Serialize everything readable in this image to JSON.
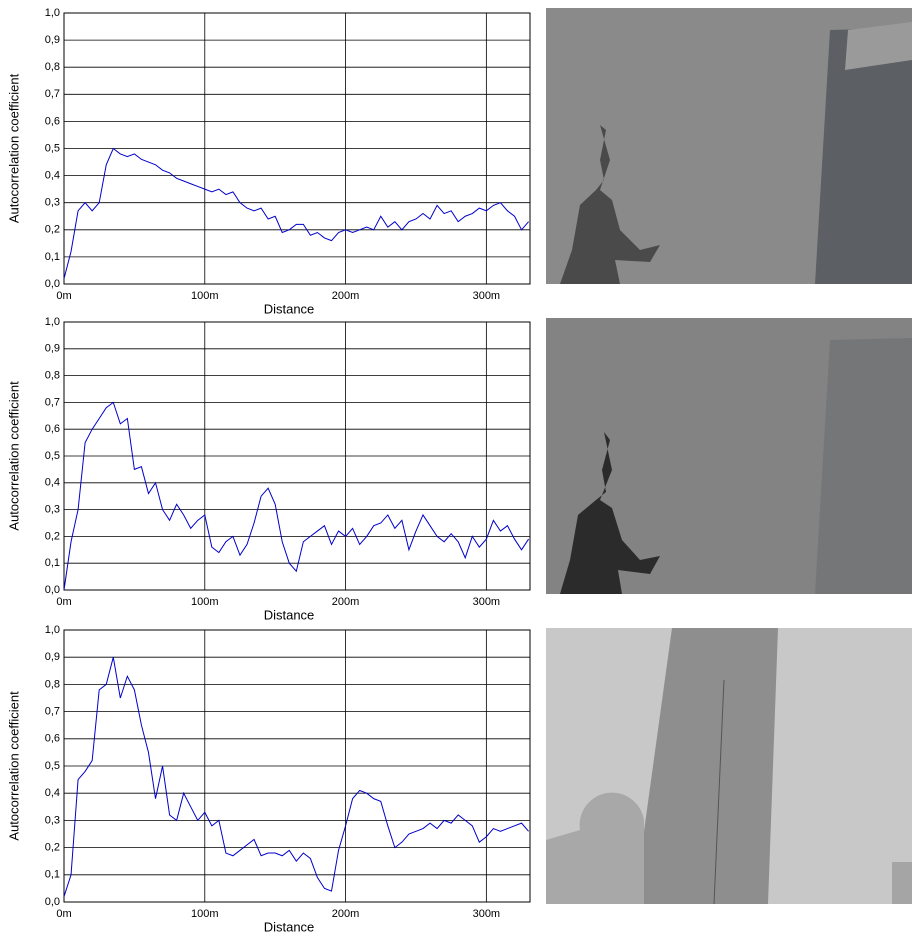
{
  "chart_data": [
    {
      "type": "line",
      "x_label": "Distance",
      "y_label": "Autocorrelation coefficient",
      "color": "#0000cc",
      "grid": true,
      "xlim": [
        0,
        331
      ],
      "ylim": [
        0,
        1
      ],
      "xticks": [
        {
          "value": 0,
          "label": "0m"
        },
        {
          "value": 100,
          "label": "100m"
        },
        {
          "value": 200,
          "label": "200m"
        },
        {
          "value": 300,
          "label": "300m"
        }
      ],
      "yticks": [
        {
          "value": 0,
          "label": "0,0"
        },
        {
          "value": 0.1,
          "label": "0,1"
        },
        {
          "value": 0.2,
          "label": "0,2"
        },
        {
          "value": 0.3,
          "label": "0,3"
        },
        {
          "value": 0.4,
          "label": "0,4"
        },
        {
          "value": 0.5,
          "label": "0,5"
        },
        {
          "value": 0.6,
          "label": "0,6"
        },
        {
          "value": 0.7,
          "label": "0,7"
        },
        {
          "value": 0.8,
          "label": "0,8"
        },
        {
          "value": 0.9,
          "label": "0,9"
        },
        {
          "value": 1,
          "label": "1,0"
        }
      ],
      "x": [
        0,
        5,
        10,
        15,
        20,
        25,
        30,
        35,
        40,
        45,
        50,
        55,
        60,
        65,
        70,
        75,
        80,
        85,
        90,
        95,
        100,
        105,
        110,
        115,
        120,
        125,
        130,
        135,
        140,
        145,
        150,
        155,
        160,
        165,
        170,
        175,
        180,
        185,
        190,
        195,
        200,
        205,
        210,
        215,
        220,
        225,
        230,
        235,
        240,
        245,
        250,
        255,
        260,
        265,
        270,
        275,
        280,
        285,
        290,
        295,
        300,
        305,
        310,
        315,
        320,
        325,
        330
      ],
      "values": [
        0.02,
        0.12,
        0.27,
        0.3,
        0.27,
        0.3,
        0.44,
        0.5,
        0.48,
        0.47,
        0.48,
        0.46,
        0.45,
        0.44,
        0.42,
        0.41,
        0.39,
        0.38,
        0.37,
        0.36,
        0.35,
        0.34,
        0.35,
        0.33,
        0.34,
        0.3,
        0.28,
        0.27,
        0.28,
        0.24,
        0.25,
        0.19,
        0.2,
        0.22,
        0.22,
        0.18,
        0.19,
        0.17,
        0.16,
        0.19,
        0.2,
        0.19,
        0.2,
        0.21,
        0.2,
        0.25,
        0.21,
        0.23,
        0.2,
        0.23,
        0.24,
        0.26,
        0.24,
        0.29,
        0.26,
        0.27,
        0.23,
        0.25,
        0.26,
        0.28,
        0.27,
        0.29,
        0.3,
        0.27,
        0.25,
        0.2,
        0.23
      ]
    },
    {
      "type": "line",
      "x_label": "Distance",
      "y_label": "Autocorrelation coefficient",
      "color": "#0000cc",
      "grid": true,
      "xlim": [
        0,
        331
      ],
      "ylim": [
        0,
        1
      ],
      "xticks": [
        {
          "value": 0,
          "label": "0m"
        },
        {
          "value": 100,
          "label": "100m"
        },
        {
          "value": 200,
          "label": "200m"
        },
        {
          "value": 300,
          "label": "300m"
        }
      ],
      "yticks": [
        {
          "value": 0,
          "label": "0,0"
        },
        {
          "value": 0.1,
          "label": "0,1"
        },
        {
          "value": 0.2,
          "label": "0,2"
        },
        {
          "value": 0.3,
          "label": "0,3"
        },
        {
          "value": 0.4,
          "label": "0,4"
        },
        {
          "value": 0.5,
          "label": "0,5"
        },
        {
          "value": 0.6,
          "label": "0,6"
        },
        {
          "value": 0.7,
          "label": "0,7"
        },
        {
          "value": 0.8,
          "label": "0,8"
        },
        {
          "value": 0.9,
          "label": "0,9"
        },
        {
          "value": 1,
          "label": "1,0"
        }
      ],
      "x": [
        0,
        5,
        10,
        15,
        20,
        25,
        30,
        35,
        40,
        45,
        50,
        55,
        60,
        65,
        70,
        75,
        80,
        85,
        90,
        95,
        100,
        105,
        110,
        115,
        120,
        125,
        130,
        135,
        140,
        145,
        150,
        155,
        160,
        165,
        170,
        175,
        180,
        185,
        190,
        195,
        200,
        205,
        210,
        215,
        220,
        225,
        230,
        235,
        240,
        245,
        250,
        255,
        260,
        265,
        270,
        275,
        280,
        285,
        290,
        295,
        300,
        305,
        310,
        315,
        320,
        325,
        330
      ],
      "values": [
        0.0,
        0.18,
        0.3,
        0.55,
        0.6,
        0.64,
        0.68,
        0.7,
        0.62,
        0.64,
        0.45,
        0.46,
        0.36,
        0.4,
        0.3,
        0.26,
        0.32,
        0.28,
        0.23,
        0.26,
        0.28,
        0.16,
        0.14,
        0.18,
        0.2,
        0.13,
        0.17,
        0.25,
        0.35,
        0.38,
        0.32,
        0.18,
        0.1,
        0.07,
        0.18,
        0.2,
        0.22,
        0.24,
        0.17,
        0.22,
        0.2,
        0.23,
        0.17,
        0.2,
        0.24,
        0.25,
        0.28,
        0.23,
        0.26,
        0.15,
        0.22,
        0.28,
        0.24,
        0.2,
        0.18,
        0.21,
        0.18,
        0.12,
        0.2,
        0.16,
        0.19,
        0.26,
        0.22,
        0.24,
        0.19,
        0.15,
        0.19
      ]
    },
    {
      "type": "line",
      "x_label": "Distance",
      "y_label": "Autocorrelation coefficient",
      "color": "#0000cc",
      "grid": true,
      "xlim": [
        0,
        331
      ],
      "ylim": [
        0,
        1
      ],
      "xticks": [
        {
          "value": 0,
          "label": "0m"
        },
        {
          "value": 100,
          "label": "100m"
        },
        {
          "value": 200,
          "label": "200m"
        },
        {
          "value": 300,
          "label": "300m"
        }
      ],
      "yticks": [
        {
          "value": 0,
          "label": "0,0"
        },
        {
          "value": 0.1,
          "label": "0,1"
        },
        {
          "value": 0.2,
          "label": "0,2"
        },
        {
          "value": 0.3,
          "label": "0,3"
        },
        {
          "value": 0.4,
          "label": "0,4"
        },
        {
          "value": 0.5,
          "label": "0,5"
        },
        {
          "value": 0.6,
          "label": "0,6"
        },
        {
          "value": 0.7,
          "label": "0,7"
        },
        {
          "value": 0.8,
          "label": "0,8"
        },
        {
          "value": 0.9,
          "label": "0,9"
        },
        {
          "value": 1,
          "label": "1,0"
        }
      ],
      "x": [
        0,
        5,
        10,
        15,
        20,
        25,
        30,
        35,
        40,
        45,
        50,
        55,
        60,
        65,
        70,
        75,
        80,
        85,
        90,
        95,
        100,
        105,
        110,
        115,
        120,
        125,
        130,
        135,
        140,
        145,
        150,
        155,
        160,
        165,
        170,
        175,
        180,
        185,
        190,
        195,
        200,
        205,
        210,
        215,
        220,
        225,
        230,
        235,
        240,
        245,
        250,
        255,
        260,
        265,
        270,
        275,
        280,
        285,
        290,
        295,
        300,
        305,
        310,
        315,
        320,
        325,
        330
      ],
      "values": [
        0.02,
        0.1,
        0.45,
        0.48,
        0.52,
        0.78,
        0.8,
        0.9,
        0.75,
        0.83,
        0.78,
        0.65,
        0.55,
        0.38,
        0.5,
        0.32,
        0.3,
        0.4,
        0.35,
        0.3,
        0.33,
        0.28,
        0.3,
        0.18,
        0.17,
        0.19,
        0.21,
        0.23,
        0.17,
        0.18,
        0.18,
        0.17,
        0.19,
        0.15,
        0.18,
        0.16,
        0.09,
        0.05,
        0.04,
        0.19,
        0.28,
        0.38,
        0.41,
        0.4,
        0.38,
        0.37,
        0.28,
        0.2,
        0.22,
        0.25,
        0.26,
        0.27,
        0.29,
        0.27,
        0.3,
        0.29,
        0.32,
        0.3,
        0.28,
        0.22,
        0.24,
        0.27,
        0.26,
        0.27,
        0.28,
        0.29,
        0.26
      ]
    }
  ]
}
